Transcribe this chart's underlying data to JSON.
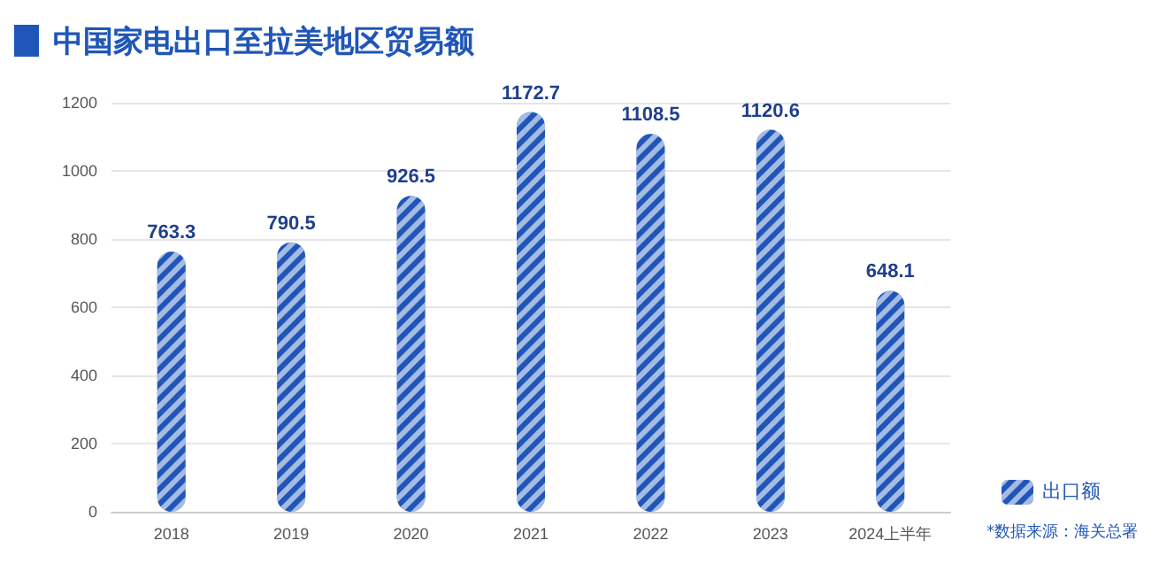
{
  "chart_data": {
    "type": "bar",
    "title": "中国家电出口至拉美地区贸易额",
    "categories": [
      "2018",
      "2019",
      "2020",
      "2021",
      "2022",
      "2023",
      "2024上半年"
    ],
    "series": [
      {
        "name": "出口额",
        "color": "#1f56b8",
        "values": [
          763.3,
          790.5,
          926.5,
          1172.7,
          1108.5,
          1120.6,
          648.1
        ]
      }
    ],
    "ylim": [
      0,
      1200
    ],
    "yticks": [
      0,
      200,
      400,
      600,
      800,
      1000,
      1200
    ],
    "grid": "y",
    "data_labels": true,
    "legend": "bottom right",
    "annotations": [
      "*数据来源：海关总署"
    ]
  }
}
